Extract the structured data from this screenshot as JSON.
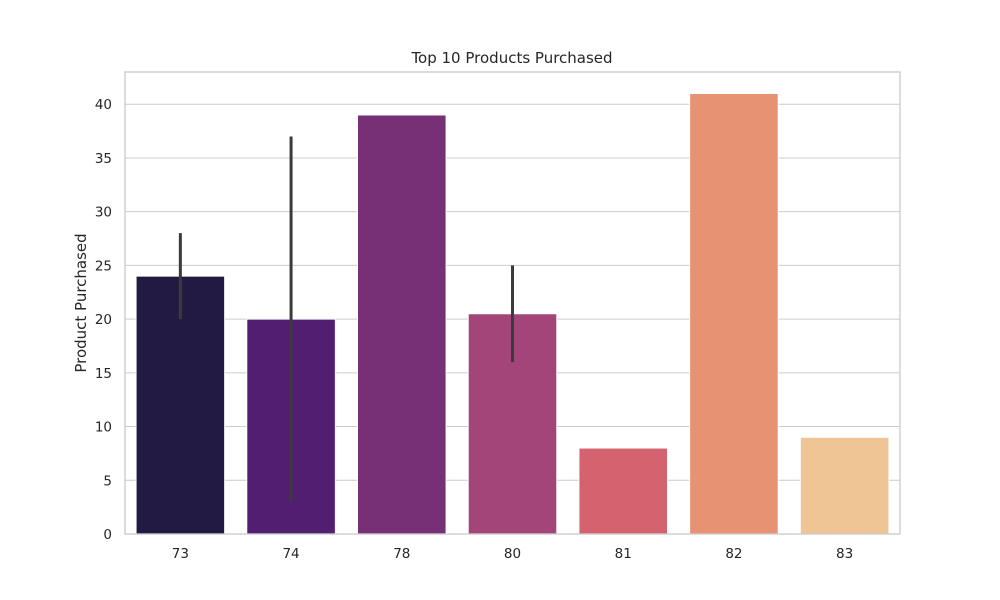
{
  "chart_data": {
    "type": "bar",
    "title": "Top 10 Products Purchased",
    "xlabel": "",
    "ylabel": "Product Purchased",
    "categories": [
      "73",
      "74",
      "78",
      "80",
      "81",
      "82",
      "83"
    ],
    "values": [
      24,
      20,
      39,
      20.5,
      8,
      41,
      9
    ],
    "error_bars": [
      {
        "low": 20,
        "high": 28
      },
      {
        "low": 3,
        "high": 37
      },
      null,
      {
        "low": 16,
        "high": 25
      },
      null,
      null,
      null
    ],
    "colors": [
      "#221a42",
      "#511e72",
      "#772f75",
      "#a4457a",
      "#d5636f",
      "#e79272",
      "#f0c595"
    ],
    "ylim": [
      0,
      43
    ],
    "yticks": [
      0,
      5,
      10,
      15,
      20,
      25,
      30,
      35,
      40
    ],
    "grid": "y-axis horizontal lines",
    "legend": "none"
  }
}
